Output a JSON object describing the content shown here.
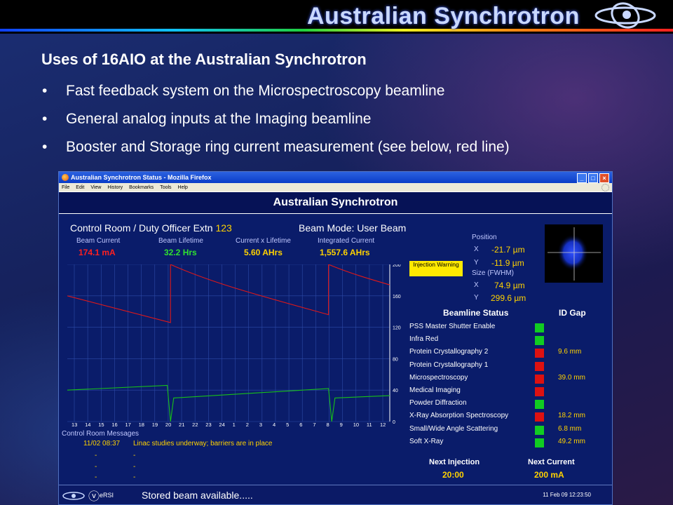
{
  "header": {
    "brand": "Australian Synchrotron"
  },
  "slide": {
    "title": "Uses of 16AIO at the Australian Synchrotron",
    "bullets": [
      "Fast feedback system on the Microspectroscopy beamline",
      "General analog inputs at the Imaging beamline",
      "Booster and Storage ring current measurement (see below, red line)"
    ]
  },
  "browser": {
    "title": "Australian Synchrotron Status - Mozilla Firefox",
    "menu": [
      "File",
      "Edit",
      "View",
      "History",
      "Bookmarks",
      "Tools",
      "Help"
    ]
  },
  "app": {
    "title": "Australian Synchrotron",
    "control_room": "Control Room / Duty Officer Extn",
    "extn": "123",
    "beam_mode": "Beam Mode: User Beam",
    "stats": [
      {
        "label": "Beam Current",
        "value": "174.1 mA",
        "color": "#ff2020"
      },
      {
        "label": "Beam Lifetime",
        "value": "32.2 Hrs",
        "color": "#30e030"
      },
      {
        "label": "Current x Lifetime",
        "value": "5.60 AHrs",
        "color": "#ffd200"
      },
      {
        "label": "Integrated Current",
        "value": "1,557.6 AHrs",
        "color": "#ffd200"
      }
    ],
    "injection_warning": "Injection Warning",
    "position": {
      "label": "Position",
      "x": "-21.7 µm",
      "y": "-11.9 µm"
    },
    "size": {
      "label": "Size (FWHM)",
      "x": "74.9 µm",
      "y": "299.6 µm"
    },
    "xl": "X",
    "yl": "Y",
    "beamline_status_label": "Beamline Status",
    "id_gap_label": "ID Gap",
    "beamlines": [
      {
        "name": "PSS Master Shutter Enable",
        "status": "green",
        "gap": ""
      },
      {
        "name": "Infra Red",
        "status": "green",
        "gap": ""
      },
      {
        "name": "Protein Crystallography 2",
        "status": "red",
        "gap": "9.6 mm"
      },
      {
        "name": "Protein Crystallography 1",
        "status": "red",
        "gap": ""
      },
      {
        "name": "Microspectroscopy",
        "status": "red",
        "gap": "39.0 mm"
      },
      {
        "name": "Medical Imaging",
        "status": "red",
        "gap": ""
      },
      {
        "name": "Powder Diffraction",
        "status": "green",
        "gap": ""
      },
      {
        "name": "X-Ray Absorption Spectroscopy",
        "status": "red",
        "gap": "18.2 mm"
      },
      {
        "name": "Small/Wide Angle Scattering",
        "status": "green",
        "gap": "6.8 mm"
      },
      {
        "name": "Soft X-Ray",
        "status": "green",
        "gap": "49.2 mm"
      }
    ],
    "x_ticks": [
      "13",
      "14",
      "15",
      "16",
      "17",
      "18",
      "19",
      "20",
      "21",
      "22",
      "23",
      "24",
      "1",
      "2",
      "3",
      "4",
      "5",
      "6",
      "7",
      "8",
      "9",
      "10",
      "11",
      "12"
    ],
    "y_ticks": [
      "200",
      "160",
      "120",
      "80",
      "40",
      "0"
    ],
    "messages_label": "Control Room Messages",
    "messages": [
      {
        "time": "11/02 08:37",
        "text": "Linac studies underway; barriers are in place"
      },
      {
        "time": "-",
        "text": "-"
      },
      {
        "time": "-",
        "text": "-"
      },
      {
        "time": "-",
        "text": "-"
      }
    ],
    "next_injection_label": "Next Injection",
    "next_injection": "20:00",
    "next_current_label": "Next Current",
    "next_current": "200 mA",
    "status_text": "Stored beam available.....",
    "timestamp": "11 Feb 09 12:23:50",
    "esri": "eRSI",
    "colors": {
      "red": "#dd1111",
      "green": "#11cc22"
    }
  }
}
